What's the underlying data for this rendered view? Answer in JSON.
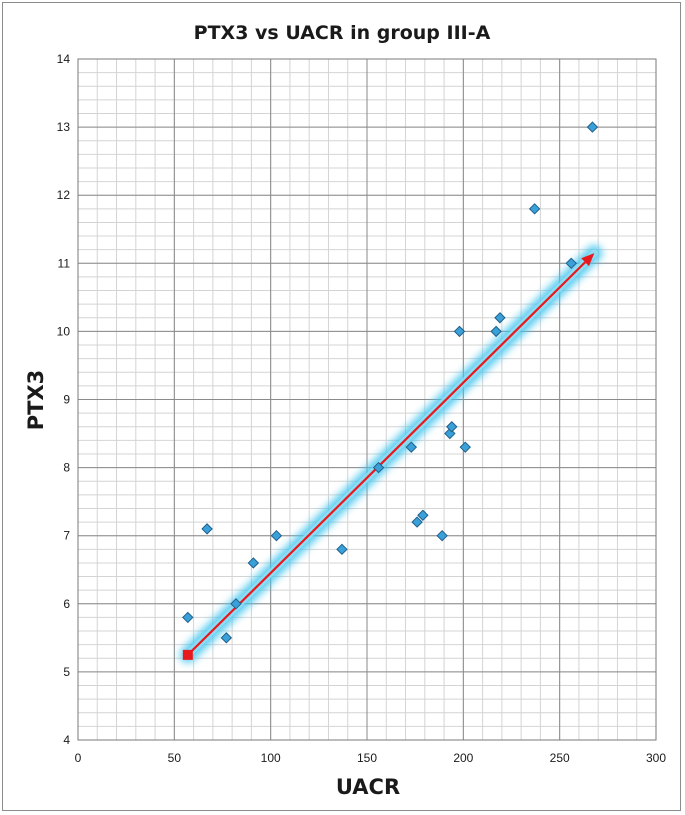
{
  "chart_data": {
    "type": "scatter",
    "title": "PTX3 vs UACR in group III-A",
    "xlabel": "UACR",
    "ylabel": "PTX3",
    "xlim": [
      0,
      300
    ],
    "ylim": [
      4,
      14
    ],
    "x_major_step": 50,
    "y_major_step": 1,
    "x_minor_step": 10,
    "y_minor_step": 0.2,
    "x_ticks": [
      "0",
      "50",
      "100",
      "150",
      "200",
      "250",
      "300"
    ],
    "y_ticks": [
      "4",
      "5",
      "6",
      "7",
      "8",
      "9",
      "10",
      "11",
      "12",
      "13",
      "14"
    ],
    "grid": true,
    "legend": "none",
    "colors": {
      "marker_fill": "#3aa0d8",
      "marker_stroke": "#1f5f8b",
      "arrow": "#e8191c",
      "glow": "#3fc4ee",
      "grid_minor": "#d4d4d4",
      "grid_major": "#8a8a8a"
    },
    "points": [
      {
        "x": 57,
        "y": 5.8
      },
      {
        "x": 67,
        "y": 7.1
      },
      {
        "x": 77,
        "y": 5.5
      },
      {
        "x": 82,
        "y": 6.0
      },
      {
        "x": 91,
        "y": 6.6
      },
      {
        "x": 103,
        "y": 7.0
      },
      {
        "x": 137,
        "y": 6.8
      },
      {
        "x": 156,
        "y": 8.0
      },
      {
        "x": 173,
        "y": 8.3
      },
      {
        "x": 176,
        "y": 7.2
      },
      {
        "x": 179,
        "y": 7.3
      },
      {
        "x": 189,
        "y": 7.0
      },
      {
        "x": 193,
        "y": 8.5
      },
      {
        "x": 194,
        "y": 8.6
      },
      {
        "x": 198,
        "y": 10.0
      },
      {
        "x": 201,
        "y": 8.3
      },
      {
        "x": 217,
        "y": 10.0
      },
      {
        "x": 219,
        "y": 10.2
      },
      {
        "x": 237,
        "y": 11.8
      },
      {
        "x": 256,
        "y": 11.0
      },
      {
        "x": 267,
        "y": 13.0
      }
    ],
    "trend_arrow": {
      "x1": 57,
      "y1": 5.25,
      "x2": 268,
      "y2": 11.15
    }
  }
}
